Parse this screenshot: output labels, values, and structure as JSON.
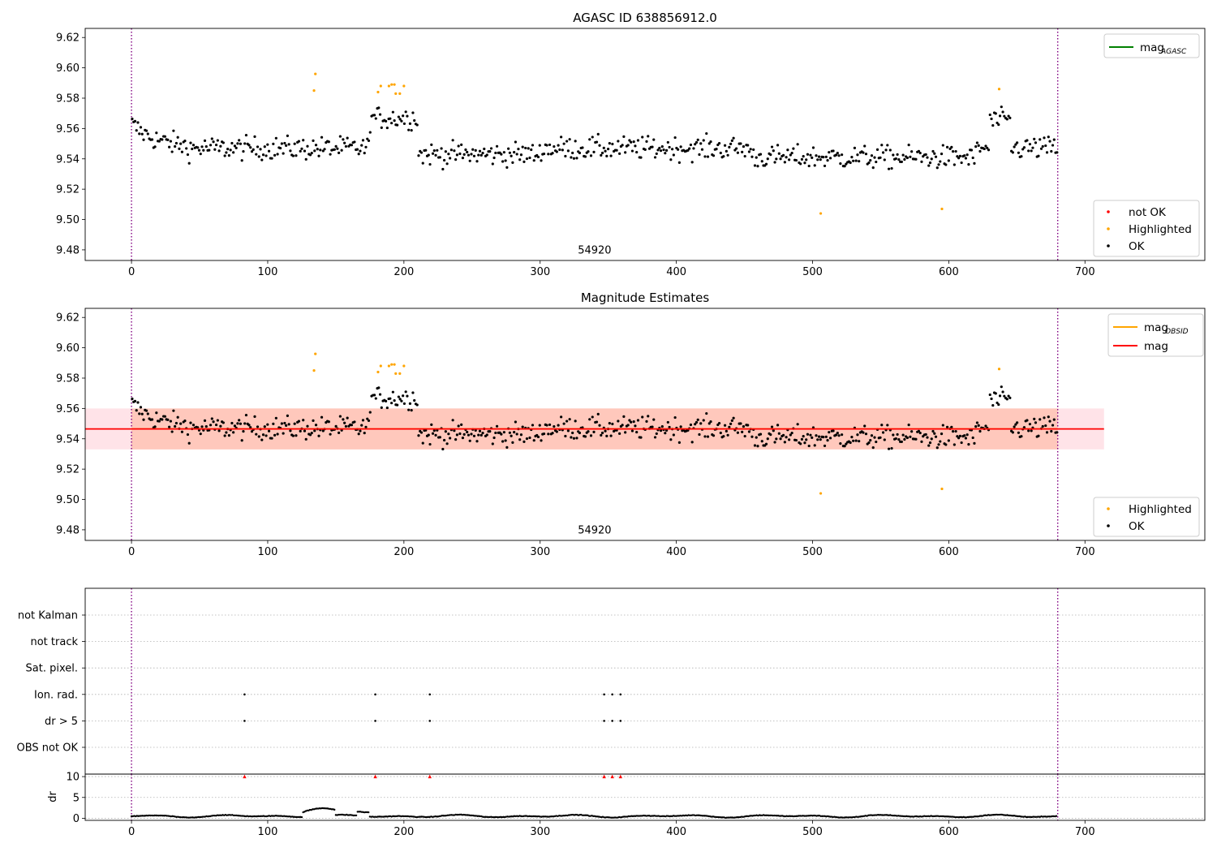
{
  "chart_data": [
    {
      "type": "scatter",
      "id": "panel1",
      "title": "AGASC ID 638856912.0",
      "annotation": "54920",
      "xlim": [
        -34,
        788
      ],
      "ylim": [
        9.473,
        9.626
      ],
      "xticks": [
        0,
        100,
        200,
        300,
        400,
        500,
        600,
        700
      ],
      "yticks": [
        9.48,
        9.5,
        9.52,
        9.54,
        9.56,
        9.58,
        9.6,
        9.62
      ],
      "vlines": [
        0,
        680
      ],
      "line_legend": [
        {
          "label": "mag",
          "sub": "AGASC",
          "color": "#008000"
        }
      ],
      "point_legend": [
        {
          "label": "not OK",
          "color": "#ff0000"
        },
        {
          "label": "Highlighted",
          "color": "#ffa500"
        },
        {
          "label": "OK",
          "color": "#000000"
        }
      ],
      "series": [
        {
          "name": "OK",
          "color": "#000000",
          "n": 650,
          "x_range": [
            0,
            680
          ],
          "y_base": 9.547
        },
        {
          "name": "Highlighted",
          "color": "#ffa500",
          "points": [
            [
              134,
              9.585
            ],
            [
              135,
              9.596
            ],
            [
              181,
              9.584
            ],
            [
              183,
              9.588
            ],
            [
              189,
              9.588
            ],
            [
              191,
              9.589
            ],
            [
              193,
              9.589
            ],
            [
              194,
              9.583
            ],
            [
              197,
              9.583
            ],
            [
              200,
              9.588
            ],
            [
              506,
              9.504
            ],
            [
              595,
              9.507
            ],
            [
              637,
              9.586
            ]
          ]
        }
      ]
    },
    {
      "type": "scatter",
      "id": "panel2",
      "title": "Magnitude Estimates",
      "annotation": "54920",
      "xlim": [
        -34,
        788
      ],
      "ylim": [
        9.473,
        9.626
      ],
      "xticks": [
        0,
        100,
        200,
        300,
        400,
        500,
        600,
        700
      ],
      "yticks": [
        9.48,
        9.5,
        9.52,
        9.54,
        9.56,
        9.58,
        9.6,
        9.62
      ],
      "vlines": [
        0,
        680
      ],
      "bands": [
        {
          "x": [
            -34,
            714
          ],
          "y": [
            9.533,
            9.56
          ],
          "color": "#ffc0cb",
          "opacity": 0.45
        },
        {
          "x": [
            0,
            680
          ],
          "y": [
            9.533,
            9.56
          ],
          "color": "#ffa07a",
          "opacity": 0.4
        }
      ],
      "hlines": [
        {
          "y": 9.5465,
          "x": [
            0,
            680
          ],
          "color": "#ffa500"
        },
        {
          "y": 9.5465,
          "x": [
            -34,
            714
          ],
          "color": "#ff0000"
        }
      ],
      "line_legend": [
        {
          "label": "mag",
          "sub": "OBSID",
          "color": "#ffa500"
        },
        {
          "label": "mag",
          "sub": "",
          "color": "#ff0000"
        }
      ],
      "point_legend": [
        {
          "label": "Highlighted",
          "color": "#ffa500"
        },
        {
          "label": "OK",
          "color": "#000000"
        }
      ]
    },
    {
      "type": "scatter",
      "id": "panel3",
      "xlim": [
        -34,
        788
      ],
      "categories": [
        "OBS not OK",
        "dr > 5",
        "Ion. rad.",
        "Sat. pixel.",
        "not track",
        "not Kalman"
      ],
      "vlines": [
        0,
        680
      ],
      "flag_x": [
        83,
        179,
        219,
        347,
        353,
        359
      ],
      "flag_rows": [
        "dr > 5",
        "Ion. rad."
      ]
    },
    {
      "type": "scatter",
      "id": "panel4",
      "ylabel": "dr",
      "xlim": [
        -34,
        788
      ],
      "ylim": [
        -0.5,
        10.6
      ],
      "xticks": [
        0,
        100,
        200,
        300,
        400,
        500,
        600,
        700
      ],
      "yticks": [
        0,
        5,
        10
      ],
      "vlines": [
        0,
        680
      ],
      "clipped_x": [
        83,
        179,
        219,
        347,
        353,
        359
      ],
      "clipped_color": "#ff0000",
      "n": 680
    }
  ]
}
